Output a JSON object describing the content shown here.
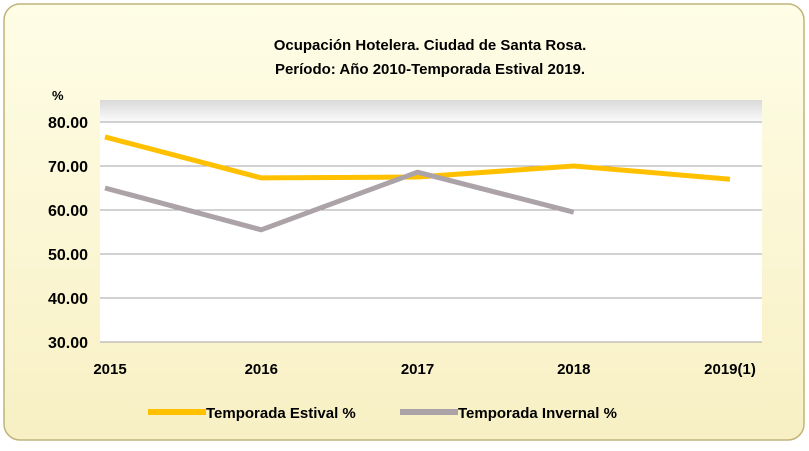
{
  "chart_data": {
    "type": "line",
    "title": "Ocupación Hotelera. Ciudad de Santa Rosa.",
    "subtitle": "Período: Año 2010-Temporada Estival 2019.",
    "y_label": "%",
    "categories": [
      "2015",
      "2016",
      "2017",
      "2018",
      "2019(1)"
    ],
    "series": [
      {
        "name": "Temporada Estival %",
        "color": "#ffc000",
        "values": [
          76.6,
          67.3,
          67.5,
          70.0,
          67.0
        ]
      },
      {
        "name": "Temporada Invernal %",
        "color": "#aca3a8",
        "values": [
          65.0,
          55.5,
          68.6,
          59.5,
          null
        ]
      }
    ],
    "ylim": [
      30,
      85
    ],
    "yticks": [
      {
        "value": 30,
        "label": "30.00"
      },
      {
        "value": 40,
        "label": "40.00"
      },
      {
        "value": 50,
        "label": "50.00"
      },
      {
        "value": 60,
        "label": "60.00"
      },
      {
        "value": 70,
        "label": "70.00"
      },
      {
        "value": 80,
        "label": "80.00"
      }
    ],
    "grid": true
  }
}
